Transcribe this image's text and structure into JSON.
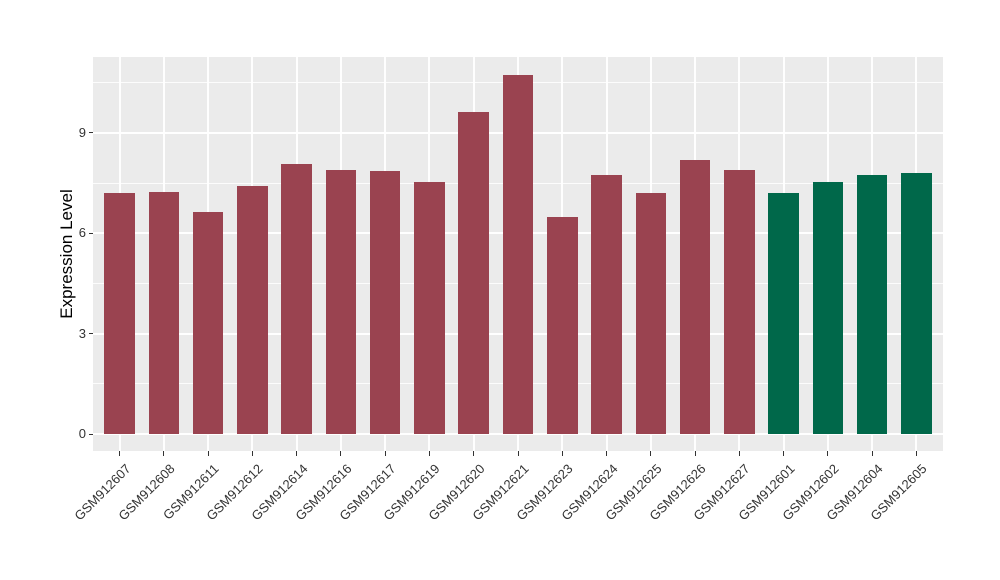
{
  "chart_data": {
    "type": "bar",
    "title": "",
    "ylabel": "Expression Level",
    "xlabel": "",
    "categories": [
      "GSM912607",
      "GSM912608",
      "GSM912611",
      "GSM912612",
      "GSM912614",
      "GSM912616",
      "GSM912617",
      "GSM912619",
      "GSM912620",
      "GSM912621",
      "GSM912623",
      "GSM912624",
      "GSM912625",
      "GSM912626",
      "GSM912627",
      "GSM912601",
      "GSM912602",
      "GSM912604",
      "GSM912605"
    ],
    "values": [
      7.2,
      7.23,
      6.63,
      7.42,
      8.07,
      7.9,
      7.86,
      7.54,
      9.63,
      10.73,
      6.48,
      7.73,
      7.22,
      8.2,
      7.88,
      7.22,
      7.53,
      7.75,
      7.81
    ],
    "colors": [
      "#9A4350",
      "#9A4350",
      "#9A4350",
      "#9A4350",
      "#9A4350",
      "#9A4350",
      "#9A4350",
      "#9A4350",
      "#9A4350",
      "#9A4350",
      "#9A4350",
      "#9A4350",
      "#9A4350",
      "#9A4350",
      "#9A4350",
      "#00684A",
      "#00684A",
      "#00684A",
      "#00684A"
    ],
    "group_colors": {
      "red_group": "#9A4350",
      "green_group": "#00684A"
    },
    "yticks": [
      0,
      3,
      6,
      9
    ],
    "minor_gridlines": [
      1.5,
      4.5,
      7.5,
      10.5
    ],
    "ylim": [
      -0.5,
      11.3
    ],
    "panel_background": "#EBEBEB",
    "gridline_color": "#FFFFFF",
    "legend_position": "none",
    "x_tick_label_angle": 45
  }
}
